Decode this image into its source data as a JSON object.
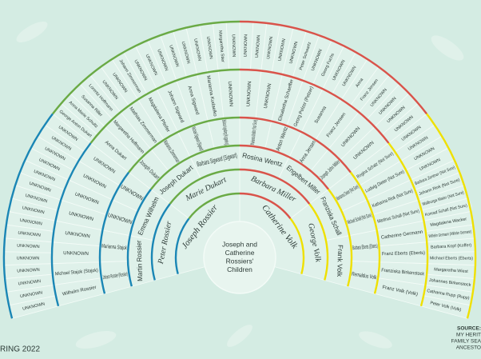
{
  "center": [
    "Joseph and",
    "Catherine",
    "Rossiers'",
    "Children"
  ],
  "generations": [
    [
      "Joseph Rossier",
      "Catherine Volk"
    ],
    [
      "Peter Rossier",
      "Marie Dukart",
      "Barbara Miller",
      "George Volk"
    ],
    [
      "Martin Rossier",
      "Emma Wilhelm",
      "Joseph Dukart",
      "Barbara Sigward (Sigwart)",
      "Rosina Wentz",
      "Engelbert Miller",
      "Franziska Schall",
      "Frank Volk"
    ],
    [
      "Johann Rossier (Rossier)",
      "Marianna Stajok",
      "UNKNOWN",
      "UNKNOWN",
      "Joseph Dukart",
      "Marianna Zimmerman",
      "Michael Sigward (Sigwart)",
      "Barbara Krugenberg (Kruggenberg)",
      "Marianna Walter (Not Sure)",
      "Anton Wentz",
      "Anna Jensen",
      "Joseph John Miller",
      "Marianna Dieter (Not Sure)",
      "Michael Schall (Not Sure)",
      "Barbara Eberts (Eberts)",
      "Remaldus Volk"
    ],
    [
      "Wilhelm Rossier",
      "Michael Stajok (Stajok)",
      "UNKNOWN",
      "UNKNOWN",
      "UNKNOWN",
      "UNKNOWN",
      "UNKNOWN",
      "UNKNOWN",
      "Anna Dukart",
      "Margaretha Hoffmann",
      "Mathias Zimmerman",
      "Magdalena Pfeifer",
      "Johann Sigward",
      "Anna Sigward",
      "Marianna Kudaelko",
      "UNKNOWN",
      "UNKNOWN",
      "UNKNOWN",
      "Elisabetha Schaeffer",
      "Georg Pelzer (Petzer)",
      "Susanna",
      "Franz Jensen",
      "UNKNOWN",
      "UNKNOWN",
      "Regina Schatz (Not Sure)",
      "Ludwig Dieter (Not Sure)",
      "Katharina Rink (Not Sure)",
      "Martinus Schall (Not Sure)",
      "Catherine Germann",
      "Franz Eberts (Eberts)",
      "Franziska Birkenstock",
      "Franz Volk (Volk)"
    ],
    [
      "UNKNOWN",
      "UNKNOWN",
      "UNKNOWN",
      "UNKNOWN",
      "UNKNOWN",
      "UNKNOWN",
      "UNKNOWN",
      "UNKNOWN",
      "UNKNOWN",
      "UNKNOWN",
      "UNKNOWN",
      "UNKNOWN",
      "UNKNOWN",
      "UNKNOWN",
      "UNKNOWN",
      "UNKNOWN",
      "George Anton Dukart",
      "Anna Marie Schultz",
      "Susanna Riller",
      "Lorentz Hoffmann",
      "UNKNOWN",
      "UNKNOWN",
      "Johann Zimmerman",
      "UNKNOWN",
      "UNKNOWN",
      "UNKNOWN",
      "UNKNOWN",
      "UNKNOWN",
      "UNKNOWN",
      "UNKNOWN",
      "Margaretha Stier",
      "UNKNOWN",
      "UNKNOWN",
      "UNKNOWN",
      "UNKNOWN",
      "UNKNOWN",
      "UNKNOWN",
      "Peter Schwartz",
      "UNKNOWN",
      "Georg Fuchs",
      "UNKNOWN",
      "UNKNOWN",
      "Anna",
      "Franz Jensen",
      "UNKNOWN",
      "UNKNOWN",
      "UNKNOWN",
      "UNKNOWN",
      "UNKNOWN",
      "UNKNOWN",
      "UNKNOWN",
      "UNKNOWN",
      "Barbara Zentner (Not Sure)",
      "Johann Rink (Not Sure)",
      "Walburga Maier (Not Sure)",
      "Konrad Schall (Not Sure)",
      "Magdalena Wacker",
      "Wilhelm Germann (Wilhelm Germann)",
      "Barbara Kopf (Koffer)",
      "Michael Eberts (Eberts)",
      "Margaretha Wiest",
      "Johannes Birkenstock",
      "Catharina Rupp (Rupp)",
      "Peter Volk (Volk)"
    ]
  ],
  "footer": {
    "date": "RING 2022",
    "source": [
      "SOURCE:",
      "MY HERIT",
      "FAMILY SEA",
      "ANCESTO"
    ]
  }
}
